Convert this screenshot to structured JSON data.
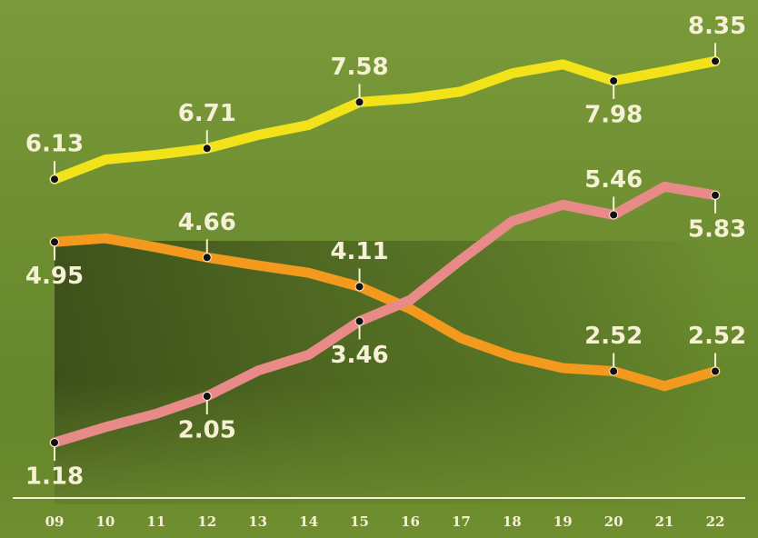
{
  "chart_data": {
    "type": "line",
    "categories": [
      "09",
      "10",
      "11",
      "12",
      "13",
      "14",
      "15",
      "16",
      "17",
      "18",
      "19",
      "20",
      "21",
      "22"
    ],
    "ylim": [
      0,
      9.5
    ],
    "series": [
      {
        "color": "#f2e21a",
        "values": [
          6.13,
          6.5,
          6.59,
          6.71,
          6.96,
          7.15,
          7.58,
          7.65,
          7.78,
          8.12,
          8.29,
          7.98,
          8.16,
          8.35
        ],
        "labeled": [
          0,
          3,
          6,
          11,
          13
        ]
      },
      {
        "color": "#f39a1e",
        "values": [
          4.95,
          5.02,
          4.85,
          4.66,
          4.51,
          4.37,
          4.11,
          3.69,
          3.14,
          2.8,
          2.58,
          2.52,
          2.24,
          2.52
        ],
        "labeled": [
          0,
          3,
          6,
          11,
          13
        ]
      },
      {
        "color": "#e88a88",
        "values": [
          1.18,
          1.47,
          1.72,
          2.05,
          2.53,
          2.83,
          3.46,
          3.86,
          4.62,
          5.34,
          5.65,
          5.46,
          5.99,
          5.83
        ],
        "labeled": [
          0,
          3,
          6,
          11,
          13
        ]
      }
    ]
  }
}
